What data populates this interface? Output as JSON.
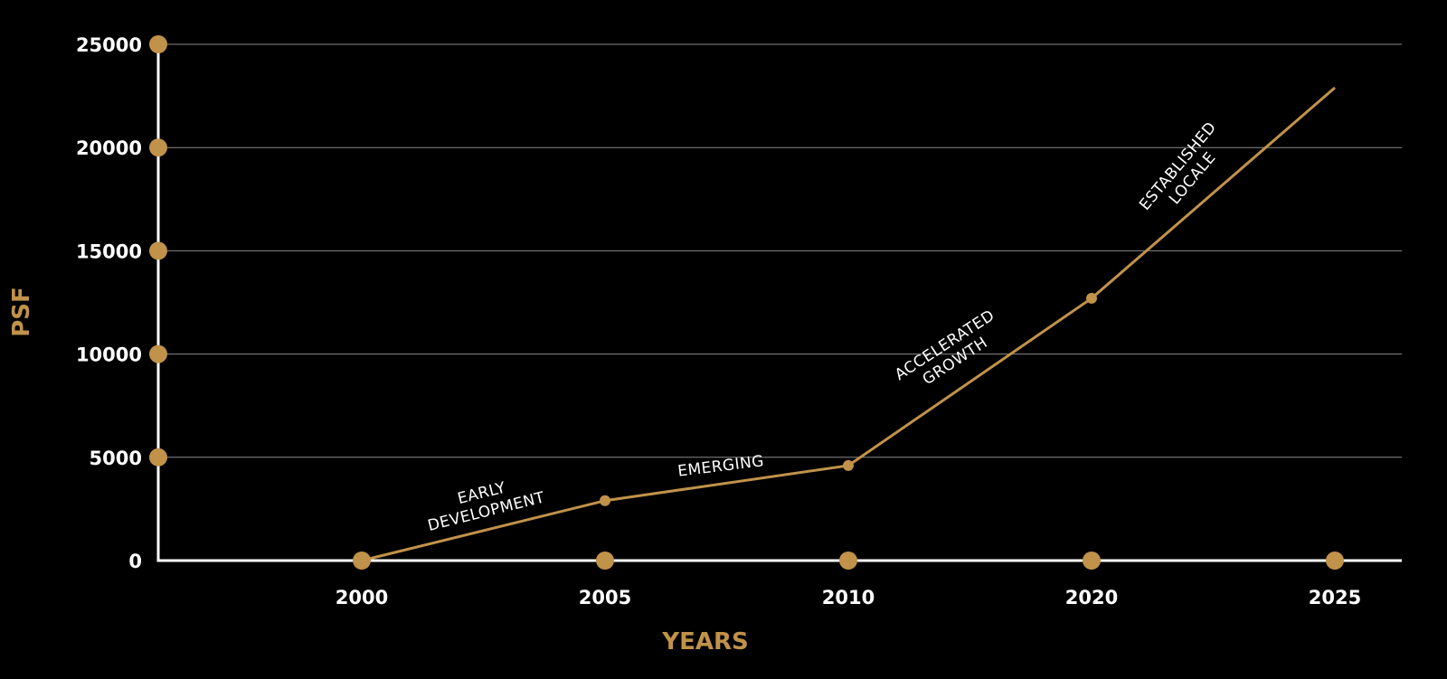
{
  "chart_data": {
    "type": "line",
    "title": "",
    "xlabel": "YEARS",
    "ylabel": "PSF",
    "categories": [
      "2000",
      "2005",
      "2010",
      "2020",
      "2025"
    ],
    "series": [
      {
        "values": [
          0,
          2900,
          4600,
          12700,
          22900
        ]
      }
    ],
    "ylim": [
      0,
      25000
    ],
    "yticks": [
      0,
      5000,
      10000,
      15000,
      20000,
      25000
    ],
    "ytick_labels": [
      "0",
      "5000",
      "10000",
      "15000",
      "20000",
      "25000"
    ],
    "grid": "horizontal",
    "annotations": [
      {
        "lines": [
          "EARLY",
          "DEVELOPMENT"
        ]
      },
      {
        "lines": [
          "EMERGING"
        ]
      },
      {
        "lines": [
          "ACCELERATED",
          "GROWTH"
        ]
      },
      {
        "lines": [
          "ESTABLISHED",
          "LOCALE"
        ]
      }
    ],
    "colors": {
      "accent": "#c0924a",
      "axis": "#ffffff",
      "grid": "#8a8a8a",
      "background": "#000000"
    }
  }
}
